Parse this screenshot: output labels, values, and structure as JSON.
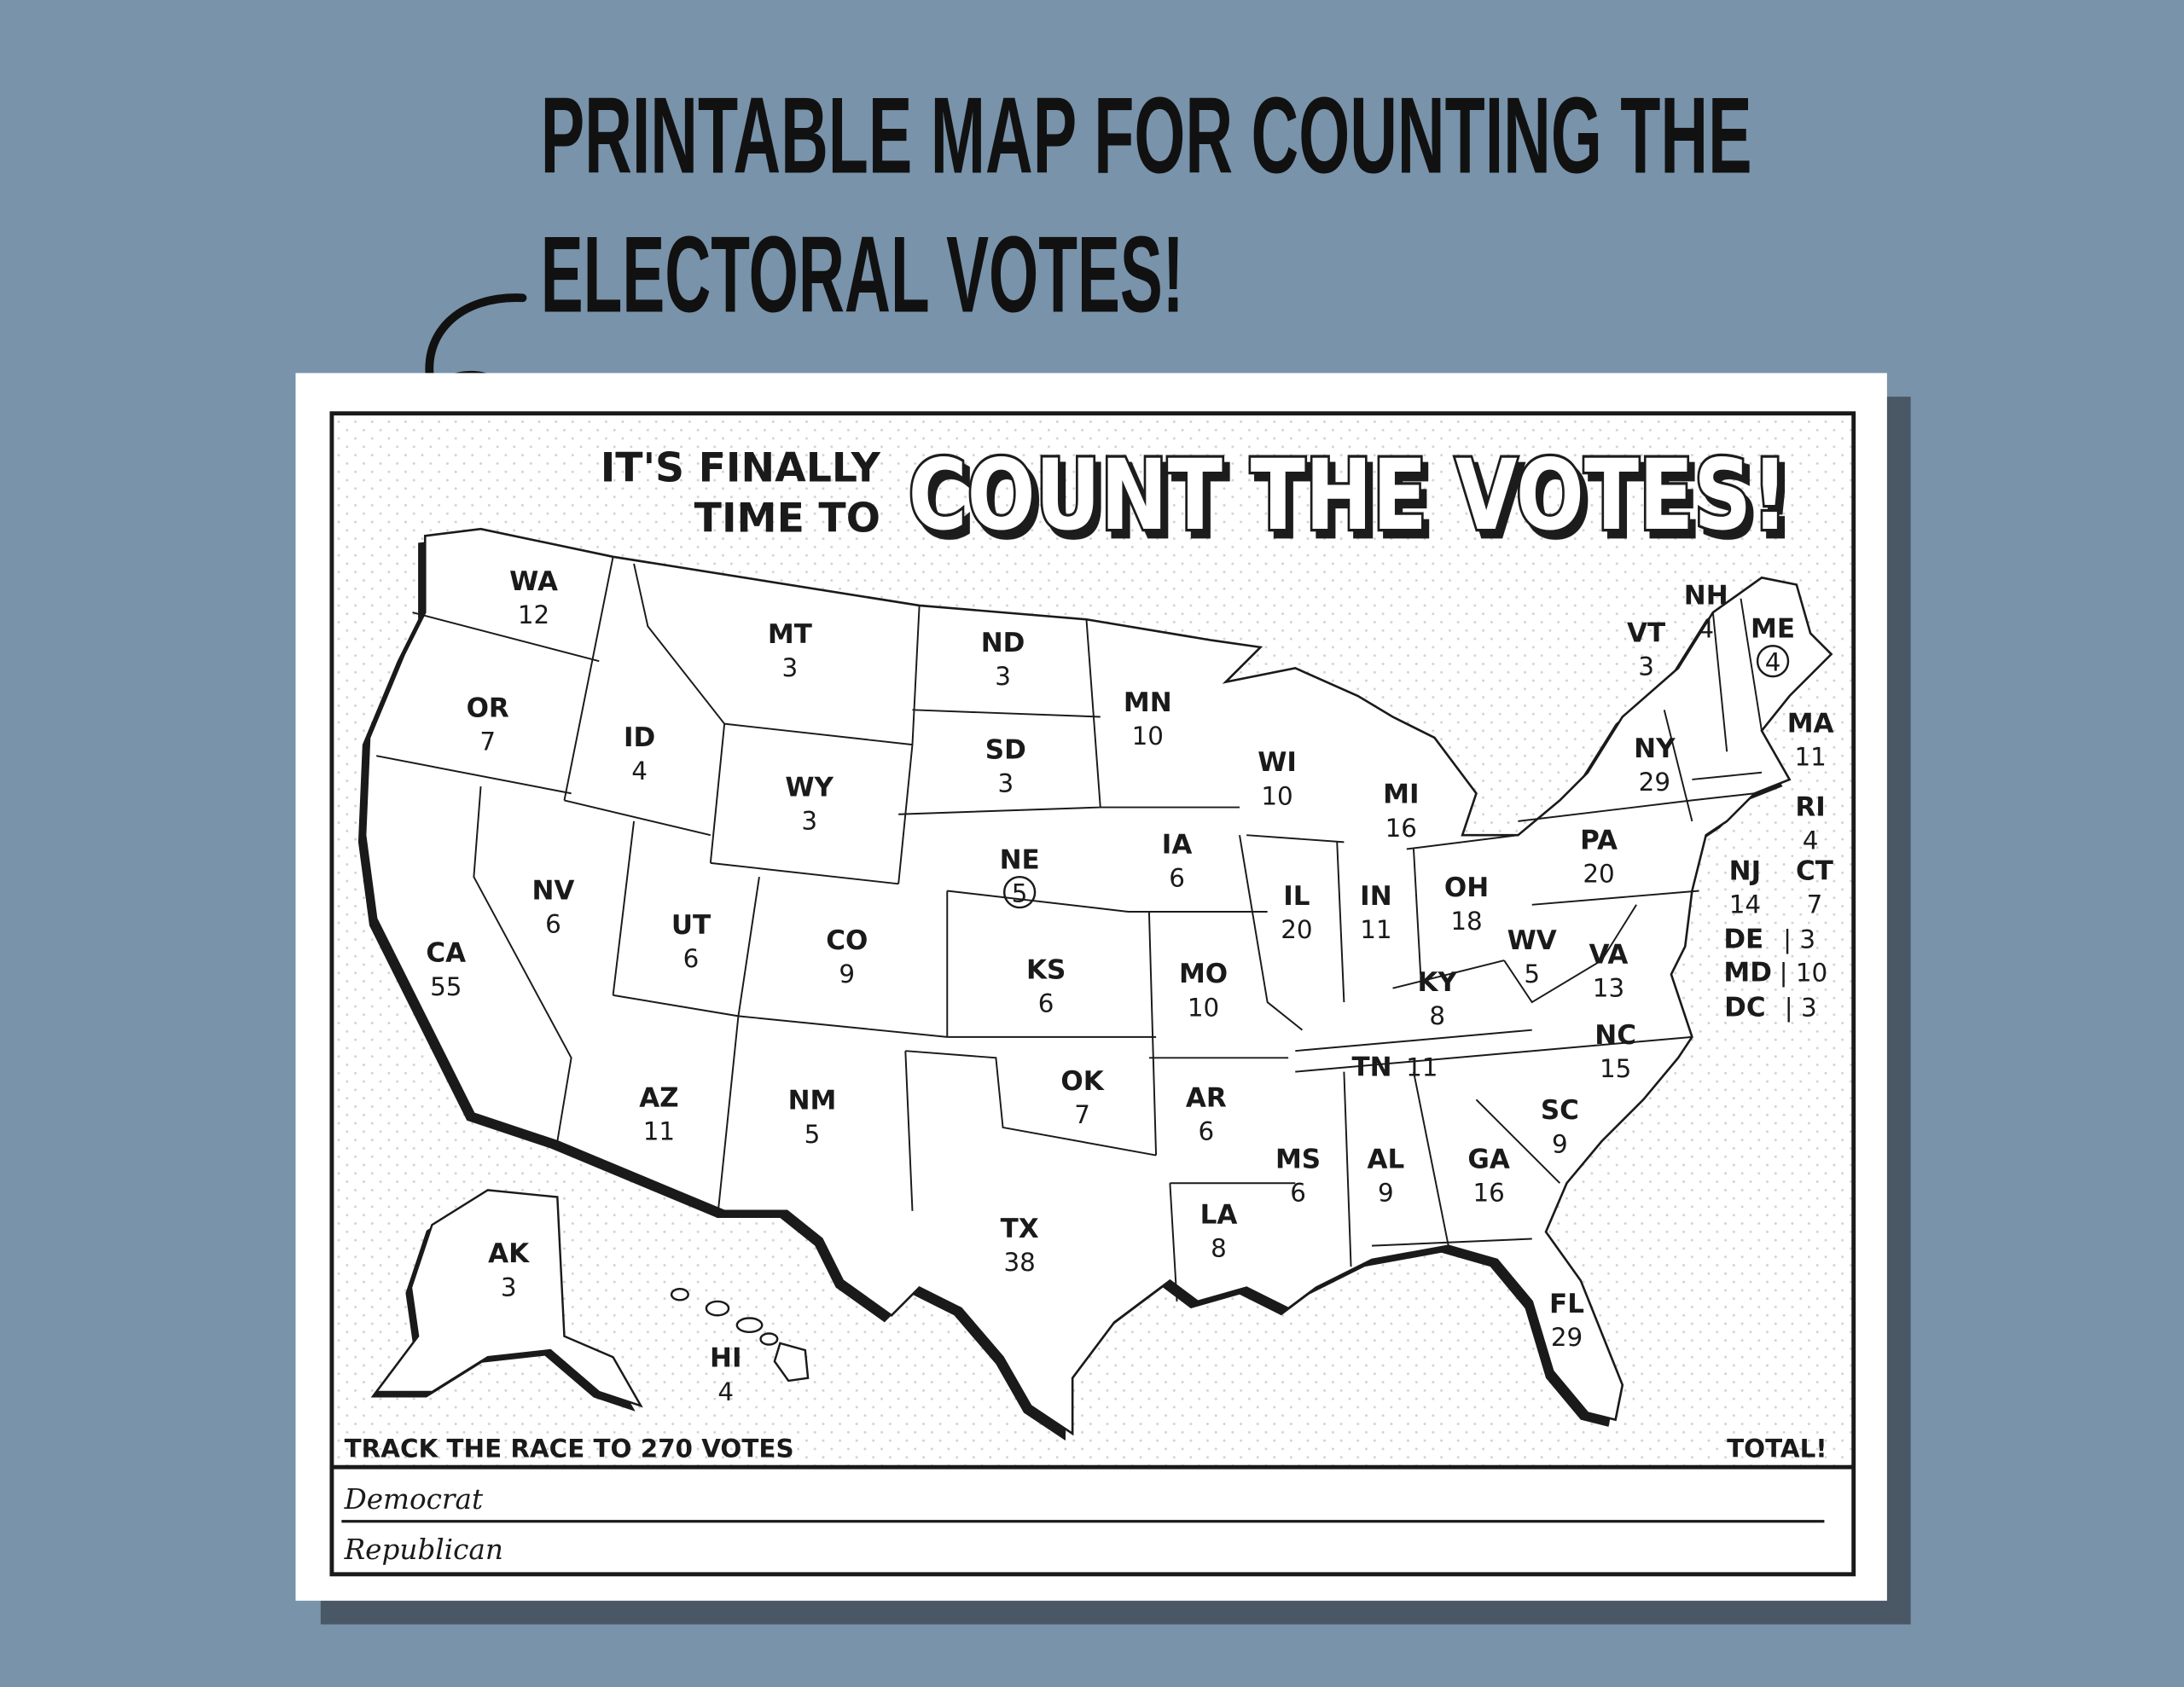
{
  "headline": {
    "line1": "PRINTABLE MAP FOR COUNTING THE",
    "line2": "ELECTORAL VOTES!"
  },
  "sheet": {
    "kicker_line1": "IT'S FINALLY",
    "kicker_line2": "TIME TO",
    "title": "COUNT THE VOTES!",
    "track_label": "TRACK THE RACE TO 270 VOTES",
    "total_label": "TOTAL!",
    "rows": [
      "Democrat",
      "Republican"
    ]
  },
  "states": [
    {
      "abbr": "WA",
      "votes": "12"
    },
    {
      "abbr": "OR",
      "votes": "7"
    },
    {
      "abbr": "CA",
      "votes": "55"
    },
    {
      "abbr": "ID",
      "votes": "4"
    },
    {
      "abbr": "NV",
      "votes": "6"
    },
    {
      "abbr": "MT",
      "votes": "3"
    },
    {
      "abbr": "WY",
      "votes": "3"
    },
    {
      "abbr": "UT",
      "votes": "6"
    },
    {
      "abbr": "AZ",
      "votes": "11"
    },
    {
      "abbr": "CO",
      "votes": "9"
    },
    {
      "abbr": "NM",
      "votes": "5"
    },
    {
      "abbr": "ND",
      "votes": "3"
    },
    {
      "abbr": "SD",
      "votes": "3"
    },
    {
      "abbr": "NE",
      "votes": "5",
      "circled": true
    },
    {
      "abbr": "KS",
      "votes": "6"
    },
    {
      "abbr": "OK",
      "votes": "7"
    },
    {
      "abbr": "TX",
      "votes": "38"
    },
    {
      "abbr": "MN",
      "votes": "10"
    },
    {
      "abbr": "IA",
      "votes": "6"
    },
    {
      "abbr": "MO",
      "votes": "10"
    },
    {
      "abbr": "AR",
      "votes": "6"
    },
    {
      "abbr": "LA",
      "votes": "8"
    },
    {
      "abbr": "WI",
      "votes": "10"
    },
    {
      "abbr": "IL",
      "votes": "20"
    },
    {
      "abbr": "MI",
      "votes": "16"
    },
    {
      "abbr": "IN",
      "votes": "11"
    },
    {
      "abbr": "OH",
      "votes": "18"
    },
    {
      "abbr": "KY",
      "votes": "8"
    },
    {
      "abbr": "TN",
      "votes": "11"
    },
    {
      "abbr": "MS",
      "votes": "6"
    },
    {
      "abbr": "AL",
      "votes": "9"
    },
    {
      "abbr": "GA",
      "votes": "16"
    },
    {
      "abbr": "FL",
      "votes": "29"
    },
    {
      "abbr": "SC",
      "votes": "9"
    },
    {
      "abbr": "NC",
      "votes": "15"
    },
    {
      "abbr": "VA",
      "votes": "13"
    },
    {
      "abbr": "WV",
      "votes": "5"
    },
    {
      "abbr": "PA",
      "votes": "20"
    },
    {
      "abbr": "NY",
      "votes": "29"
    },
    {
      "abbr": "VT",
      "votes": "3"
    },
    {
      "abbr": "NH",
      "votes": "4"
    },
    {
      "abbr": "ME",
      "votes": "4",
      "circled": true
    },
    {
      "abbr": "MA",
      "votes": "11"
    },
    {
      "abbr": "RI",
      "votes": "4"
    },
    {
      "abbr": "CT",
      "votes": "7"
    },
    {
      "abbr": "NJ",
      "votes": "14"
    },
    {
      "abbr": "DE",
      "votes": "3"
    },
    {
      "abbr": "MD",
      "votes": "10"
    },
    {
      "abbr": "DC",
      "votes": "3"
    },
    {
      "abbr": "AK",
      "votes": "3"
    },
    {
      "abbr": "HI",
      "votes": "4"
    }
  ],
  "colors": {
    "background": "#7893aa",
    "paper": "#ffffff",
    "paper_shadow": "#4a5866",
    "ink": "#1a1a1a"
  },
  "icons": [
    "curved-arrow-icon"
  ]
}
